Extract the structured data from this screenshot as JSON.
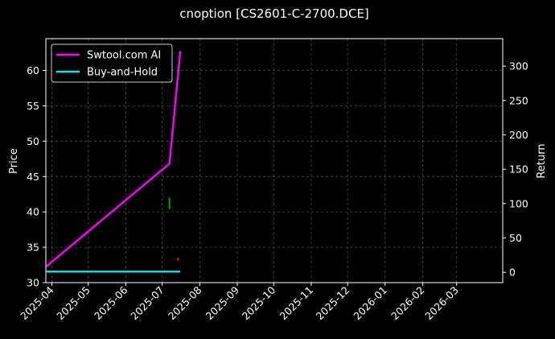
{
  "chart_data": {
    "type": "line",
    "title": "cnoption [CS2601-C-2700.DCE]",
    "ylabel_left": "Price",
    "ylabel_right": "Return",
    "xlabel": "",
    "x_ticks": [
      "2025-04",
      "2025-05",
      "2025-06",
      "2025-07",
      "2025-08",
      "2025-09",
      "2025-10",
      "2025-11",
      "2025-12",
      "2026-01",
      "2026-02",
      "2026-03"
    ],
    "x_range": [
      "2025-03-27",
      "2026-04-08"
    ],
    "y_left_ticks": [
      30,
      35,
      40,
      45,
      50,
      55,
      60
    ],
    "y_left_range": [
      30,
      64.5
    ],
    "y_right_ticks": [
      0,
      50,
      100,
      150,
      200,
      250,
      300
    ],
    "y_right_range": [
      -15,
      340
    ],
    "grid": true,
    "legend_position": "top-left",
    "series": [
      {
        "name": "Swtool.com AI",
        "axis": "right",
        "color": "#ff00ff",
        "points": [
          [
            "2025-03-27",
            8
          ],
          [
            "2025-07-07",
            158
          ],
          [
            "2025-07-16",
            322
          ]
        ]
      },
      {
        "name": "Buy-and-Hold",
        "axis": "right",
        "color": "#00e5ee",
        "points": [
          [
            "2025-03-27",
            1
          ],
          [
            "2025-07-16",
            1
          ]
        ]
      }
    ],
    "markers": [
      {
        "kind": "buy",
        "color": "#00aa00",
        "date": "2025-07-07",
        "axis": "left",
        "low": 40.4,
        "high": 42.0
      },
      {
        "kind": "sell",
        "color": "#ff0000",
        "date": "2025-07-14",
        "axis": "left",
        "low": 33.1,
        "high": 33.5
      }
    ]
  }
}
